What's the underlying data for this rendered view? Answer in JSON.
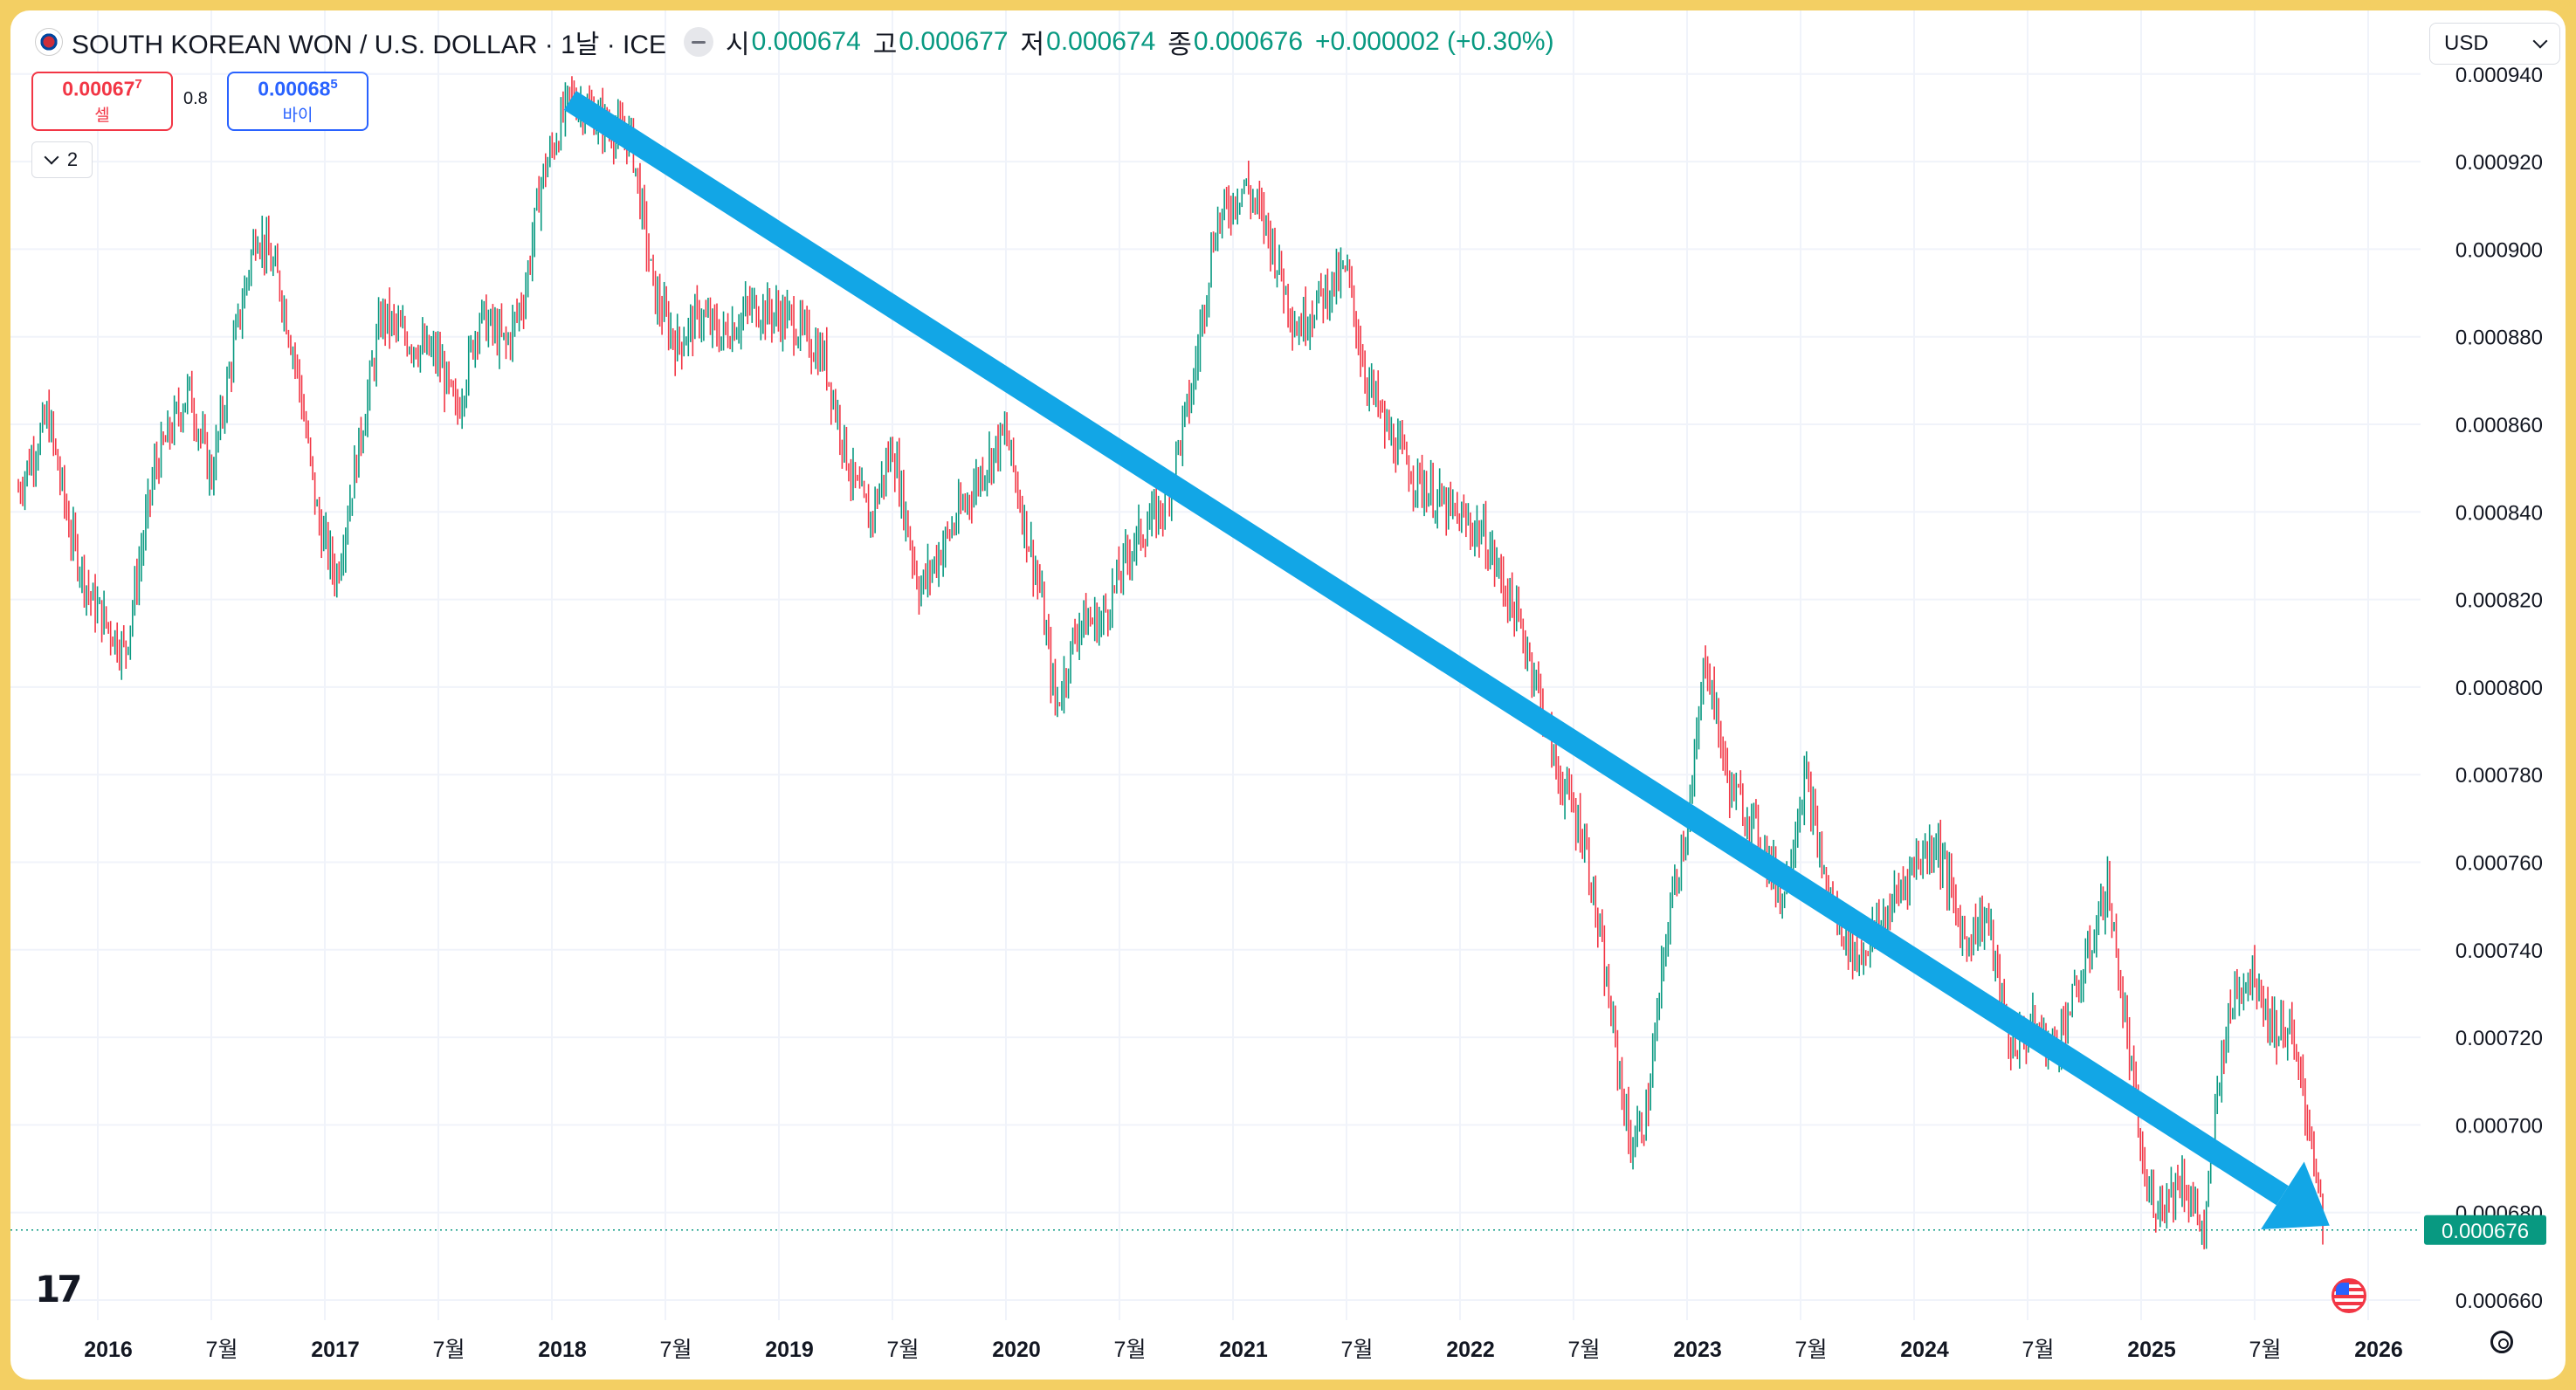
{
  "header": {
    "title": "SOUTH KOREAN WON / U.S. DOLLAR · 1날 · ICE",
    "open_label": "시",
    "open": "0.000674",
    "high_label": "고",
    "high": "0.000677",
    "low_label": "저",
    "low": "0.000674",
    "close_label": "종",
    "close": "0.000676",
    "change": "+0.000002 (+0.30%)"
  },
  "trade": {
    "sell_price": "0.00067",
    "sell_sup": "7",
    "sell_label": "셀",
    "spread": "0.8",
    "buy_price": "0.00068",
    "buy_sup": "5",
    "buy_label": "바이"
  },
  "collapse_count": "2",
  "currency_select": "USD",
  "current_price_label": "0.000676",
  "colors": {
    "up": "#089981",
    "down": "#f23645",
    "arrow": "#12a6e6",
    "price_line": "#089981"
  },
  "chart_data": {
    "type": "candlestick",
    "y_ticks": [
      "0.000940",
      "0.000920",
      "0.000900",
      "0.000880",
      "0.000860",
      "0.000840",
      "0.000820",
      "0.000800",
      "0.000780",
      "0.000760",
      "0.000740",
      "0.000720",
      "0.000700",
      "0.000680",
      "0.000660"
    ],
    "ylim": [
      0.000655,
      0.000942
    ],
    "x_ticks": [
      {
        "label": "2016",
        "t": 2016.0,
        "bold": true
      },
      {
        "label": "7월",
        "t": 2016.5,
        "bold": false
      },
      {
        "label": "2017",
        "t": 2017.0,
        "bold": true
      },
      {
        "label": "7월",
        "t": 2017.5,
        "bold": false
      },
      {
        "label": "2018",
        "t": 2018.0,
        "bold": true
      },
      {
        "label": "7월",
        "t": 2018.5,
        "bold": false
      },
      {
        "label": "2019",
        "t": 2019.0,
        "bold": true
      },
      {
        "label": "7월",
        "t": 2019.5,
        "bold": false
      },
      {
        "label": "2020",
        "t": 2020.0,
        "bold": true
      },
      {
        "label": "7월",
        "t": 2020.5,
        "bold": false
      },
      {
        "label": "2021",
        "t": 2021.0,
        "bold": true
      },
      {
        "label": "7월",
        "t": 2021.5,
        "bold": false
      },
      {
        "label": "2022",
        "t": 2022.0,
        "bold": true
      },
      {
        "label": "7월",
        "t": 2022.5,
        "bold": false
      },
      {
        "label": "2023",
        "t": 2023.0,
        "bold": true
      },
      {
        "label": "7월",
        "t": 2023.5,
        "bold": false
      },
      {
        "label": "2024",
        "t": 2024.0,
        "bold": true
      },
      {
        "label": "7월",
        "t": 2024.5,
        "bold": false
      },
      {
        "label": "2025",
        "t": 2025.0,
        "bold": true
      },
      {
        "label": "7월",
        "t": 2025.5,
        "bold": false
      },
      {
        "label": "2026",
        "t": 2026.0,
        "bold": true
      }
    ],
    "xlim": [
      2015.65,
      2026.0
    ],
    "price_path": [
      [
        2015.65,
        0.000845
      ],
      [
        2015.78,
        0.000862
      ],
      [
        2015.88,
        0.000835
      ],
      [
        2015.97,
        0.00082
      ],
      [
        2016.12,
        0.000808
      ],
      [
        2016.25,
        0.00085
      ],
      [
        2016.4,
        0.000868
      ],
      [
        2016.5,
        0.000848
      ],
      [
        2016.6,
        0.000878
      ],
      [
        2016.7,
        0.000905
      ],
      [
        2016.8,
        0.000892
      ],
      [
        2016.88,
        0.000872
      ],
      [
        2016.97,
        0.000838
      ],
      [
        2017.05,
        0.000825
      ],
      [
        2017.15,
        0.000855
      ],
      [
        2017.25,
        0.000885
      ],
      [
        2017.35,
        0.00088
      ],
      [
        2017.5,
        0.000875
      ],
      [
        2017.58,
        0.000862
      ],
      [
        2017.68,
        0.000885
      ],
      [
        2017.8,
        0.000878
      ],
      [
        2017.88,
        0.00089
      ],
      [
        2017.95,
        0.000915
      ],
      [
        2018.08,
        0.000935
      ],
      [
        2018.25,
        0.000928
      ],
      [
        2018.35,
        0.000925
      ],
      [
        2018.45,
        0.00089
      ],
      [
        2018.55,
        0.000878
      ],
      [
        2018.65,
        0.000885
      ],
      [
        2018.75,
        0.00088
      ],
      [
        2018.88,
        0.000887
      ],
      [
        2019.05,
        0.000884
      ],
      [
        2019.2,
        0.000875
      ],
      [
        2019.32,
        0.000848
      ],
      [
        2019.4,
        0.000838
      ],
      [
        2019.5,
        0.000855
      ],
      [
        2019.62,
        0.000822
      ],
      [
        2019.75,
        0.000835
      ],
      [
        2019.9,
        0.00085
      ],
      [
        2020.0,
        0.000858
      ],
      [
        2020.08,
        0.000838
      ],
      [
        2020.15,
        0.000822
      ],
      [
        2020.22,
        0.000795
      ],
      [
        2020.32,
        0.000815
      ],
      [
        2020.42,
        0.000815
      ],
      [
        2020.55,
        0.000832
      ],
      [
        2020.7,
        0.000842
      ],
      [
        2020.82,
        0.000868
      ],
      [
        2020.92,
        0.000905
      ],
      [
        2021.05,
        0.000915
      ],
      [
        2021.15,
        0.000905
      ],
      [
        2021.28,
        0.000882
      ],
      [
        2021.4,
        0.00089
      ],
      [
        2021.5,
        0.000895
      ],
      [
        2021.58,
        0.000872
      ],
      [
        2021.68,
        0.000858
      ],
      [
        2021.8,
        0.000848
      ],
      [
        2021.95,
        0.00084
      ],
      [
        2022.1,
        0.000835
      ],
      [
        2022.22,
        0.00082
      ],
      [
        2022.32,
        0.000805
      ],
      [
        2022.42,
        0.000782
      ],
      [
        2022.55,
        0.000765
      ],
      [
        2022.65,
        0.00073
      ],
      [
        2022.75,
        0.000695
      ],
      [
        2022.82,
        0.000702
      ],
      [
        2022.92,
        0.000748
      ],
      [
        2023.02,
        0.000775
      ],
      [
        2023.08,
        0.000808
      ],
      [
        2023.18,
        0.000778
      ],
      [
        2023.3,
        0.000768
      ],
      [
        2023.42,
        0.000752
      ],
      [
        2023.52,
        0.00078
      ],
      [
        2023.62,
        0.000752
      ],
      [
        2023.75,
        0.000738
      ],
      [
        2023.88,
        0.000748
      ],
      [
        2024.0,
        0.00076
      ],
      [
        2024.1,
        0.000765
      ],
      [
        2024.22,
        0.000742
      ],
      [
        2024.32,
        0.000748
      ],
      [
        2024.42,
        0.000718
      ],
      [
        2024.52,
        0.000722
      ],
      [
        2024.62,
        0.000718
      ],
      [
        2024.75,
        0.000735
      ],
      [
        2024.85,
        0.000755
      ],
      [
        2024.95,
        0.000715
      ],
      [
        2025.02,
        0.000685
      ],
      [
        2025.08,
        0.000682
      ],
      [
        2025.18,
        0.000688
      ],
      [
        2025.28,
        0.000675
      ],
      [
        2025.35,
        0.000715
      ],
      [
        2025.42,
        0.000732
      ],
      [
        2025.5,
        0.000735
      ],
      [
        2025.58,
        0.000722
      ],
      [
        2025.65,
        0.000722
      ],
      [
        2025.7,
        0.00071
      ],
      [
        2025.76,
        0.000695
      ],
      [
        2025.8,
        0.000676
      ]
    ],
    "trend_arrow": {
      "from": [
        2018.08,
        0.000934
      ],
      "to": [
        2025.83,
        0.000677
      ]
    }
  }
}
